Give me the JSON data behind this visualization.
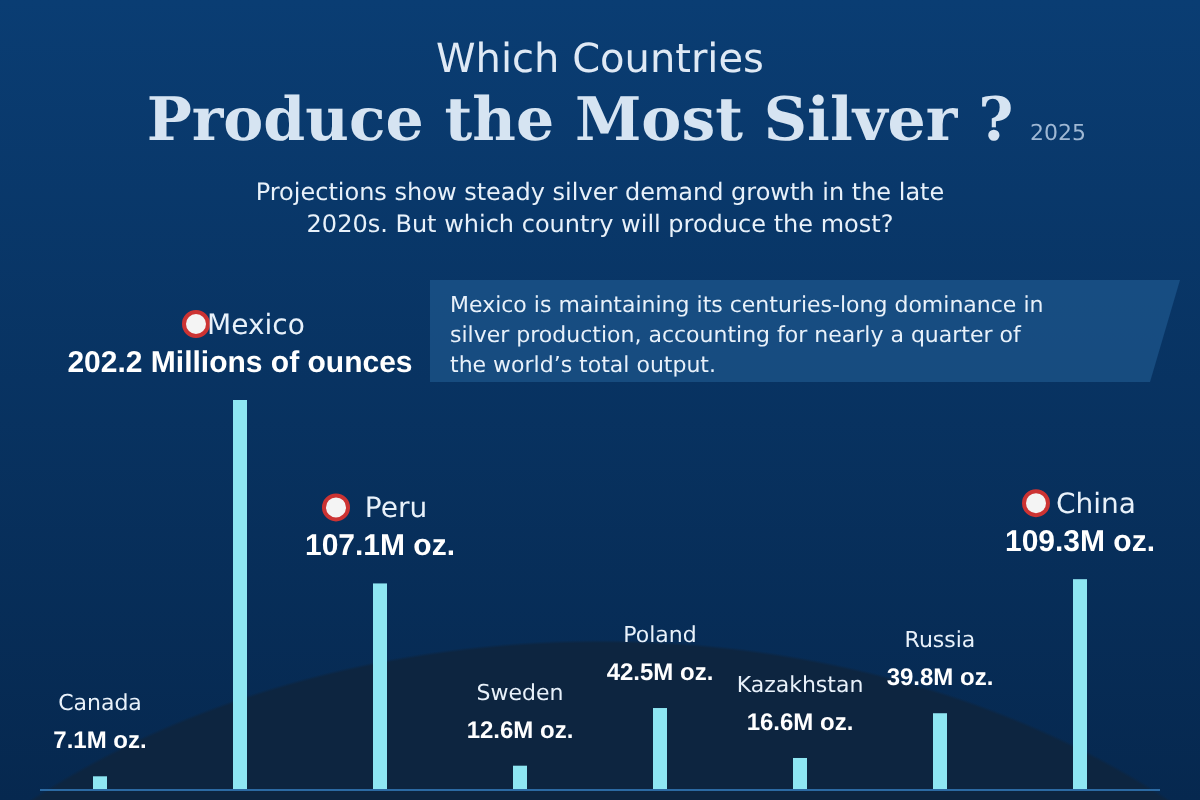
{
  "chart_data": {
    "type": "bar",
    "title": "Which Countries",
    "subtitle": "Produce the Most Silver ?",
    "categories": [
      "Canada",
      "Mexico",
      "Peru",
      "Sweden",
      "Poland",
      "Kazakhstan",
      "Russia",
      "China"
    ],
    "values": [
      7.1,
      202.2,
      107.1,
      12.6,
      42.5,
      16.6,
      39.8,
      109.3
    ],
    "value_labels": [
      "7.1M oz.",
      "202.2 Millions of ounces",
      "107.1M oz.",
      "12.6M oz.",
      "42.5M oz.",
      "16.6M oz.",
      "39.8M oz.",
      "109.3M oz."
    ],
    "color": "#8ee6f2",
    "annotations": [
      "2025",
      "Projections show steady silver demand growth in the late 2020s. But which country will produce the most?",
      "Mexico is maintaining its centuries-long dominance in silver production, accounting for nearly a quarter of the world’s total output."
    ]
  }
}
